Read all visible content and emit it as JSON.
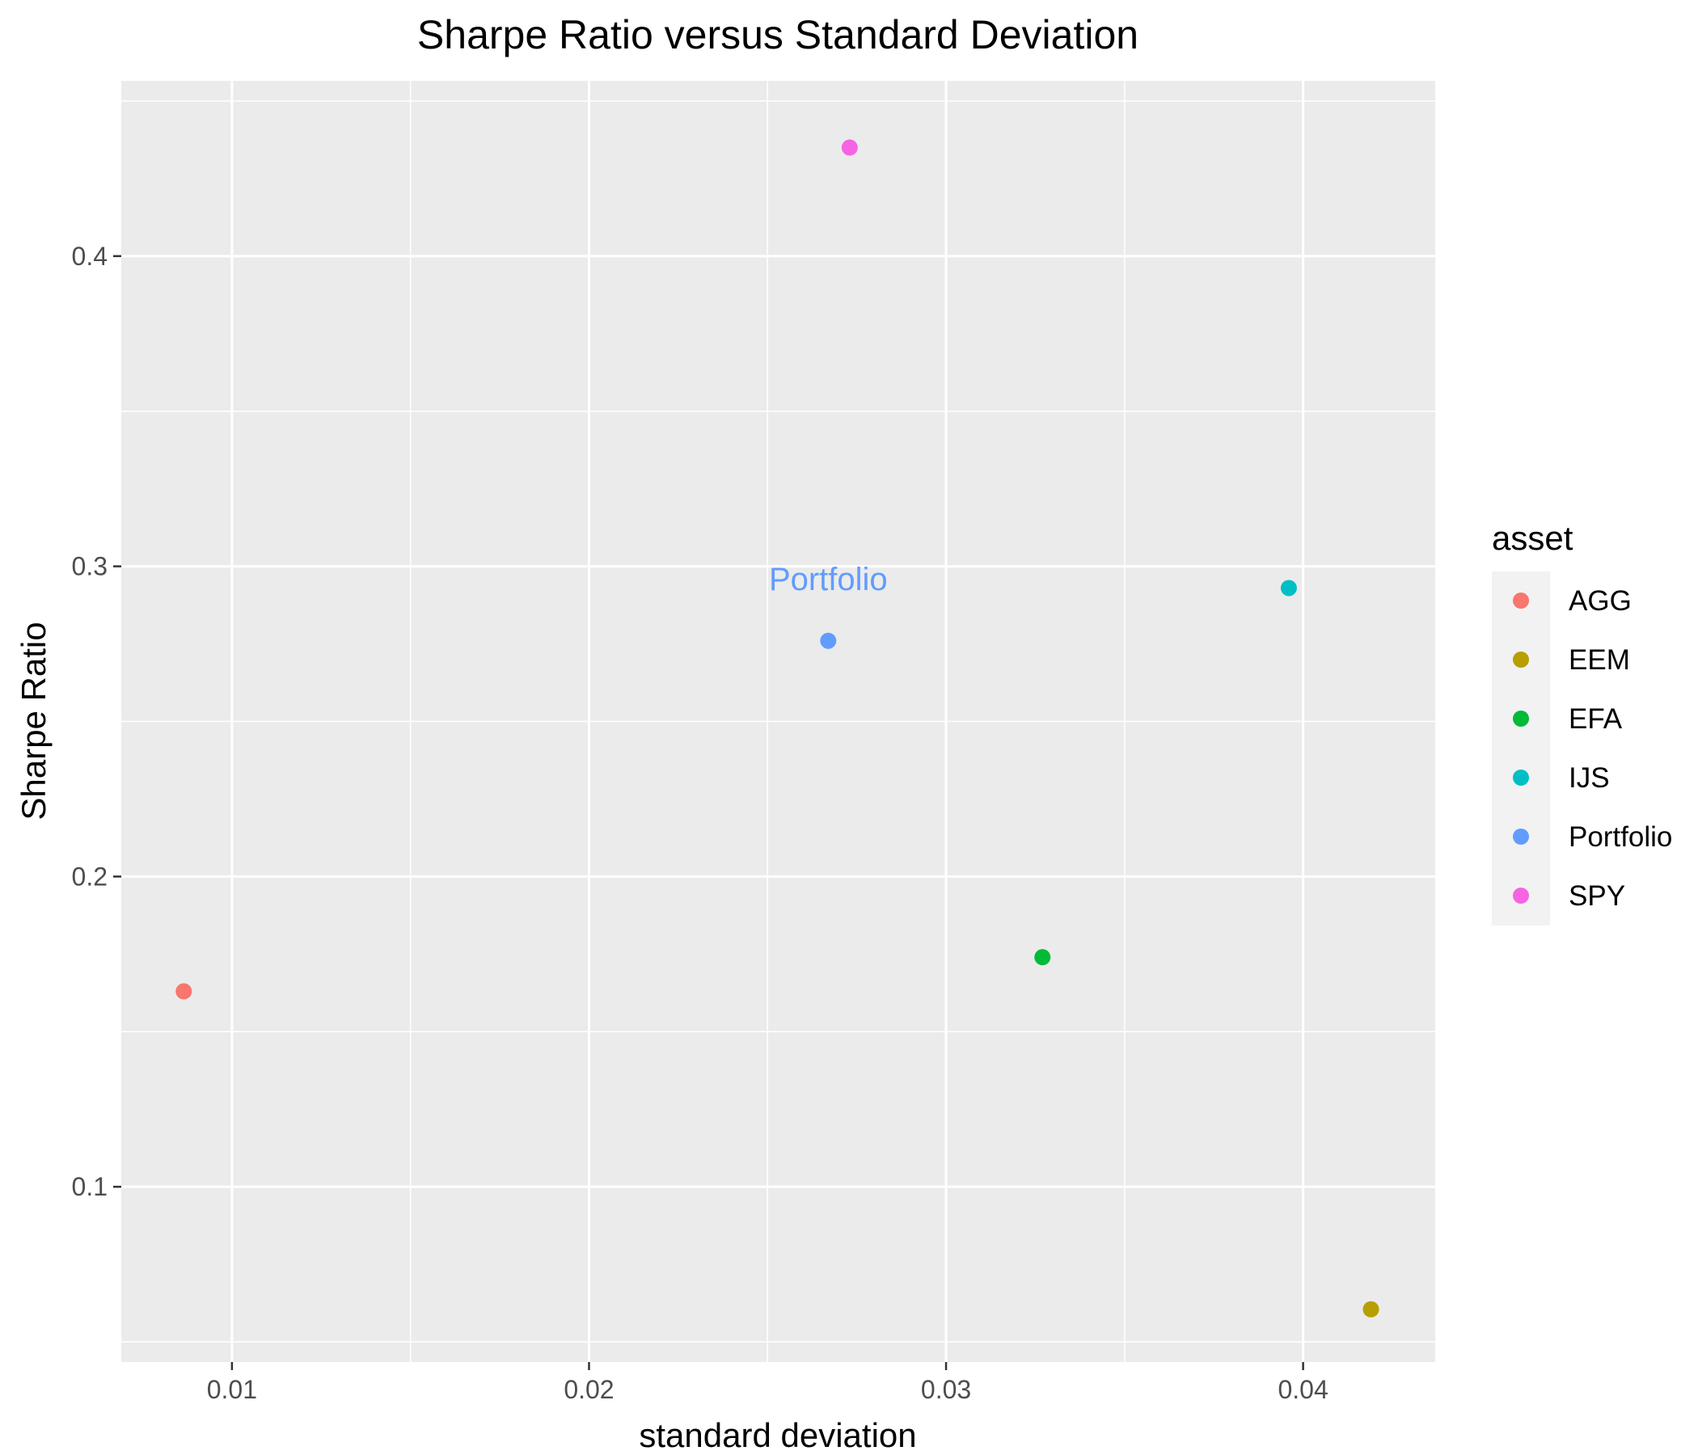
{
  "chart_data": {
    "type": "scatter",
    "title": "Sharpe Ratio versus Standard Deviation",
    "xlabel": "standard deviation",
    "ylabel": "Sharpe Ratio",
    "xlim": [
      0.0069,
      0.0437
    ],
    "ylim": [
      0.0435,
      0.4565
    ],
    "x_ticks": [
      0.01,
      0.02,
      0.03,
      0.04
    ],
    "x_tick_labels": [
      "0.01",
      "0.02",
      "0.03",
      "0.04"
    ],
    "y_ticks": [
      0.1,
      0.2,
      0.3,
      0.4
    ],
    "y_tick_labels": [
      "0.1",
      "0.2",
      "0.3",
      "0.4"
    ],
    "grid": true,
    "legend": {
      "title": "asset",
      "position": "right",
      "entries": [
        "AGG",
        "EEM",
        "EFA",
        "IJS",
        "Portfolio",
        "SPY"
      ]
    },
    "points": [
      {
        "asset": "AGG",
        "x": 0.00865,
        "y": 0.163,
        "color": "#F8766D"
      },
      {
        "asset": "EEM",
        "x": 0.0419,
        "y": 0.0605,
        "color": "#B79F00"
      },
      {
        "asset": "EFA",
        "x": 0.0327,
        "y": 0.174,
        "color": "#00BA38"
      },
      {
        "asset": "IJS",
        "x": 0.0396,
        "y": 0.293,
        "color": "#00BFC4"
      },
      {
        "asset": "Portfolio",
        "x": 0.0267,
        "y": 0.276,
        "color": "#619CFF"
      },
      {
        "asset": "SPY",
        "x": 0.0273,
        "y": 0.435,
        "color": "#F564E3"
      }
    ],
    "annotations": [
      {
        "text": "Portfolio",
        "x": 0.0267,
        "y": 0.296,
        "color": "#619CFF"
      }
    ]
  }
}
